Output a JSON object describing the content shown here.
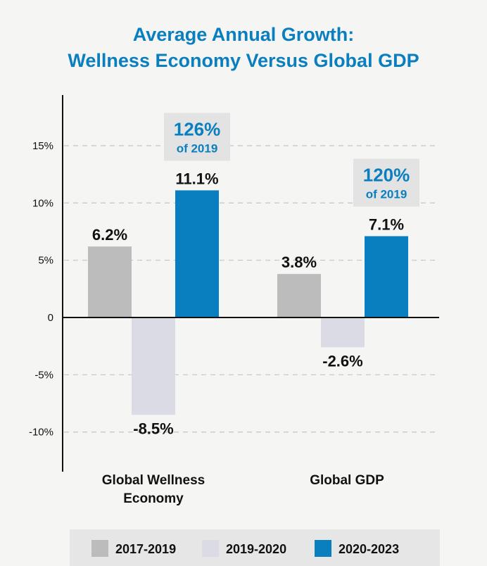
{
  "colors": {
    "accent": "#0a7fbf",
    "text": "#111111",
    "grid": "#c9c9c9",
    "axis": "#111111",
    "annotation_bg": "#e3e3e3",
    "legend_bg": "#e6e6e6"
  },
  "chart_data": {
    "type": "bar",
    "title_lines": [
      "Average Annual Growth:",
      "Wellness Economy Versus Global GDP"
    ],
    "xlabel": "",
    "ylabel": "",
    "ylim": [
      -13,
      19
    ],
    "grid": true,
    "yticks": [
      {
        "value": 15,
        "label": "15%"
      },
      {
        "value": 10,
        "label": "10%"
      },
      {
        "value": 5,
        "label": "5%"
      },
      {
        "value": 0,
        "label": "0"
      },
      {
        "value": -5,
        "label": "-5%"
      },
      {
        "value": -10,
        "label": "-10%"
      }
    ],
    "categories": [
      {
        "lines": [
          "Global Wellness",
          "Economy"
        ]
      },
      {
        "lines": [
          "Global GDP"
        ]
      }
    ],
    "series": [
      {
        "name": "2017-2019",
        "color": "#bcbcbc",
        "values": [
          6.2,
          3.8
        ],
        "labels": [
          "6.2%",
          "3.8%"
        ]
      },
      {
        "name": "2019-2020",
        "color": "#dadbe5",
        "values": [
          -8.5,
          -2.6
        ],
        "labels": [
          "-8.5%",
          "-2.6%"
        ]
      },
      {
        "name": "2020-2023",
        "color": "#0a7fbf",
        "values": [
          11.1,
          7.1
        ],
        "labels": [
          "11.1%",
          "7.1%"
        ]
      }
    ],
    "annotations": [
      {
        "category_index": 0,
        "series_index": 2,
        "big": "126%",
        "small": "of 2019"
      },
      {
        "category_index": 1,
        "series_index": 2,
        "big": "120%",
        "small": "of 2019"
      }
    ],
    "legend": {
      "position": "bottom"
    }
  }
}
